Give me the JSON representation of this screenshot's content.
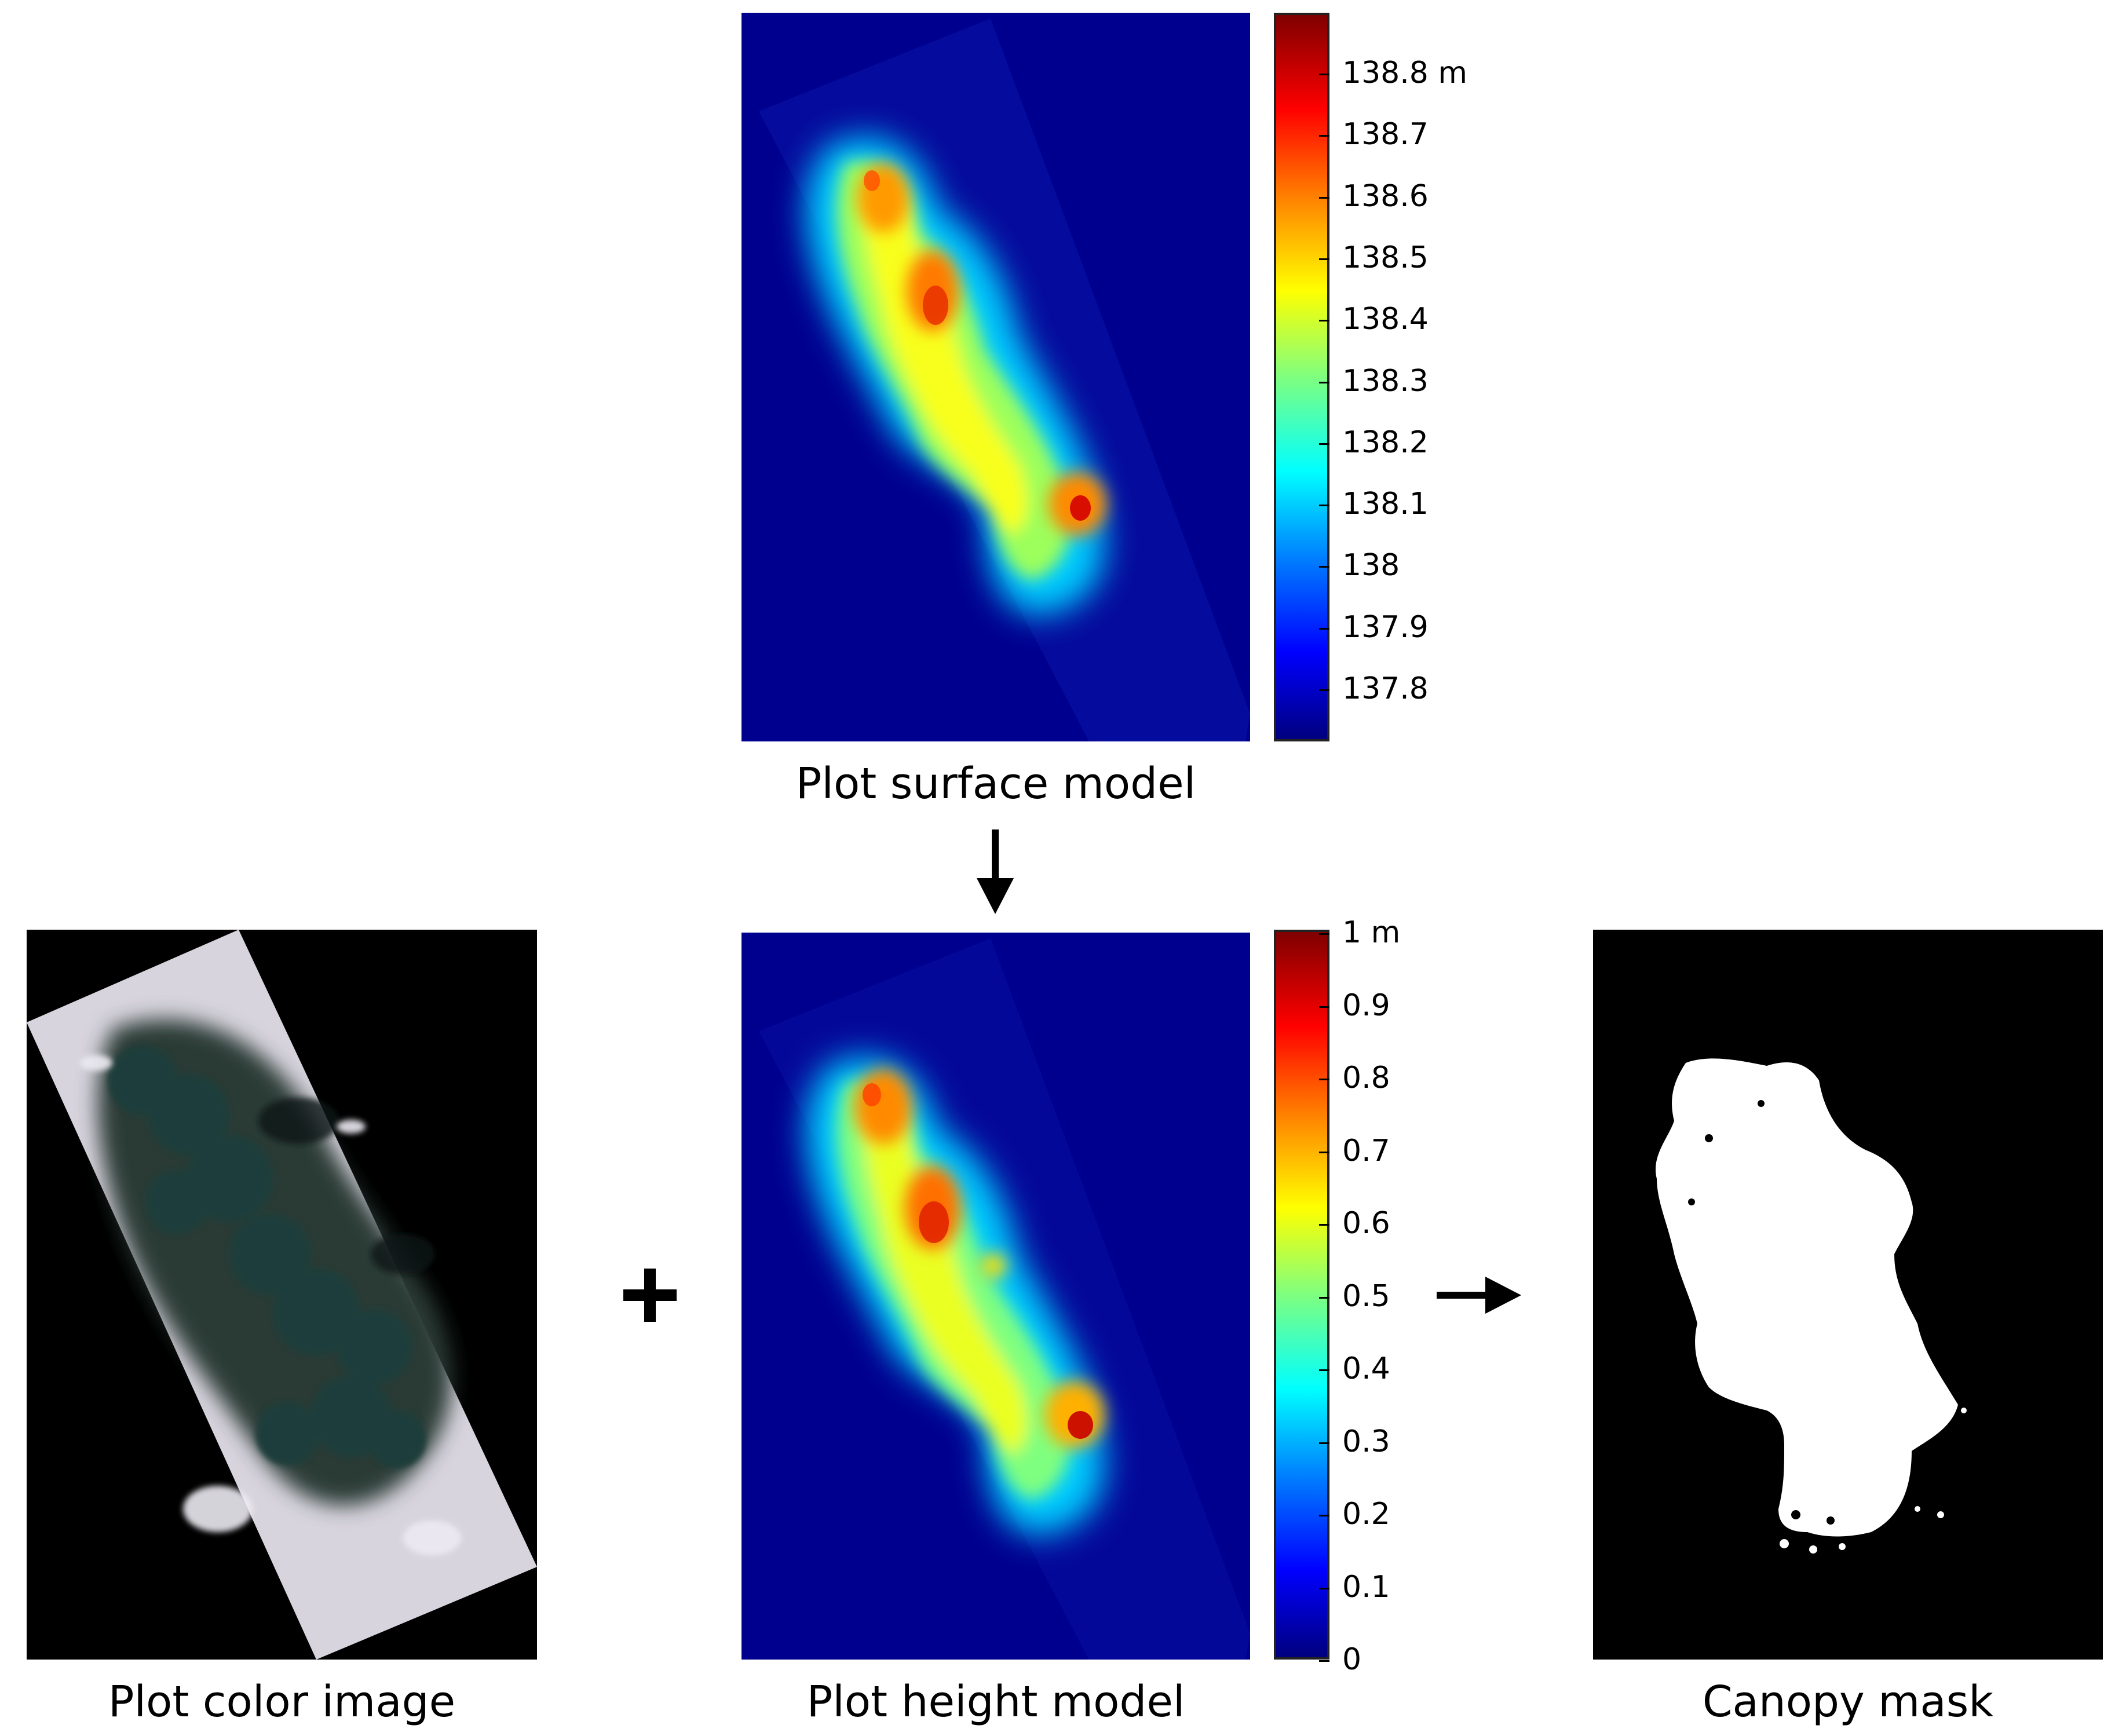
{
  "captions": {
    "surface_model": "Plot surface model",
    "height_model": "Plot height model",
    "color_image": "Plot color image",
    "canopy_mask": "Canopy mask"
  },
  "operators": {
    "plus": "+",
    "down_arrow": "arrow-down-icon",
    "right_arrow": "arrow-right-icon"
  },
  "surface_colorbar": {
    "unit": "m",
    "ticks": [
      "138.8 m",
      "138.7",
      "138.6",
      "138.5",
      "138.4",
      "138.3",
      "138.2",
      "138.1",
      "138",
      "137.9",
      "137.8"
    ],
    "range": [
      137.72,
      138.9
    ]
  },
  "height_colorbar": {
    "unit": "m",
    "ticks": [
      "1 m",
      "0.9",
      "0.8",
      "0.7",
      "0.6",
      "0.5",
      "0.4",
      "0.3",
      "0.2",
      "0.1",
      "0"
    ],
    "range": [
      0,
      1
    ]
  },
  "colors": {
    "background_blue": "#00008f",
    "jet_stops": [
      "#00007f",
      "#0000ff",
      "#007fff",
      "#00ffff",
      "#7fff7f",
      "#ffff00",
      "#ff7f00",
      "#ff0000",
      "#7f0000"
    ],
    "mask_background": "#000000",
    "mask_foreground": "#ffffff"
  }
}
